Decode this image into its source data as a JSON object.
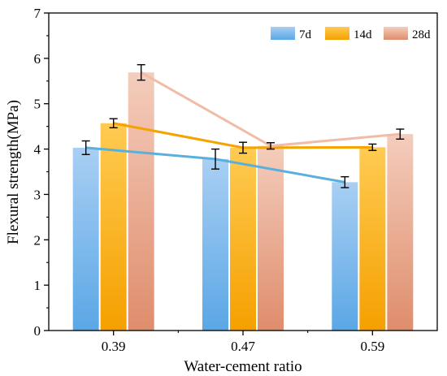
{
  "chart_data": {
    "type": "bar",
    "title": "",
    "xlabel": "Water-cement ratio",
    "ylabel": "Flexural strength(MPa)",
    "categories": [
      "0.39",
      "0.47",
      "0.59"
    ],
    "ylim": [
      0,
      7
    ],
    "yticks": [
      "0",
      "1",
      "2",
      "3",
      "4",
      "5",
      "6",
      "7"
    ],
    "legend_position": "top-right",
    "series": [
      {
        "name": "7d",
        "values": [
          4.03,
          3.78,
          3.27
        ],
        "errors": [
          0.15,
          0.22,
          0.12
        ],
        "color_top": "#a9cff3",
        "color_bottom": "#5aa7e6",
        "line_color": "#5ab0dc"
      },
      {
        "name": "14d",
        "values": [
          4.57,
          4.03,
          4.04
        ],
        "errors": [
          0.1,
          0.12,
          0.07
        ],
        "color_top": "#ffcb52",
        "color_bottom": "#f5a000",
        "line_color": "#f5a300"
      },
      {
        "name": "28d",
        "values": [
          5.69,
          4.07,
          4.33
        ],
        "errors": [
          0.17,
          0.07,
          0.11
        ],
        "color_top": "#f4cdbc",
        "color_bottom": "#df8d6c",
        "line_color": "#f0bca8"
      }
    ],
    "grid": false
  }
}
